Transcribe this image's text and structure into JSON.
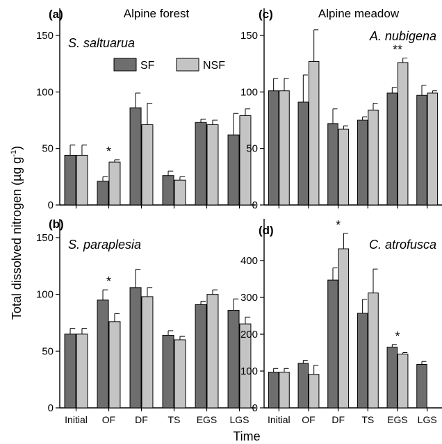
{
  "figure": {
    "ylabel": "Total dissolved nitrogen (µg g",
    "ylabel_sup": "-1",
    "ylabel_close": ")",
    "xlabel": "Time",
    "column_titles": [
      "Alpine forest",
      "Alpine meadow"
    ],
    "colors": {
      "SF": "#6e6e6e",
      "NSF": "#c4c4c4",
      "stroke": "#000000"
    }
  },
  "legend": {
    "items": [
      "SF",
      "NSF"
    ]
  },
  "chart_data": [
    {
      "type": "bar",
      "panel": "a",
      "panel_label": "(a)",
      "species": "S. saltuarua",
      "categories": [
        "Initial",
        "OF",
        "DF",
        "TS",
        "EGS",
        "LGS"
      ],
      "ylim": [
        0,
        160
      ],
      "yticks": [
        0,
        50,
        100,
        150
      ],
      "series": [
        {
          "name": "SF",
          "values": [
            44,
            21,
            86,
            26,
            73,
            62
          ],
          "errors": [
            9,
            4,
            13,
            4,
            3,
            19
          ]
        },
        {
          "name": "NSF",
          "values": [
            44,
            38,
            71,
            22,
            71,
            79
          ],
          "errors": [
            9,
            2,
            19,
            3,
            4,
            6
          ]
        }
      ],
      "annotations": [
        {
          "category": "OF",
          "text": "*"
        }
      ]
    },
    {
      "type": "bar",
      "panel": "b",
      "panel_label": "(b)",
      "species": "S. paraplesia",
      "categories": [
        "Initial",
        "OF",
        "DF",
        "TS",
        "EGS",
        "LGS"
      ],
      "ylim": [
        0,
        150
      ],
      "yticks": [
        0,
        50,
        100,
        150
      ],
      "series": [
        {
          "name": "SF",
          "values": [
            65,
            95,
            106,
            64,
            91,
            86
          ],
          "errors": [
            5,
            9,
            16,
            4,
            3,
            10
          ]
        },
        {
          "name": "NSF",
          "values": [
            65,
            76,
            98,
            60,
            100,
            74
          ],
          "errors": [
            5,
            7,
            8,
            3,
            4,
            6
          ]
        }
      ],
      "annotations": [
        {
          "category": "OF",
          "text": "*"
        }
      ]
    },
    {
      "type": "bar",
      "panel": "c",
      "panel_label": "(c)",
      "species": "A. nubigena",
      "categories": [
        "Initial",
        "OF",
        "DF",
        "TS",
        "EGS",
        "LGS"
      ],
      "ylim": [
        0,
        160
      ],
      "yticks": [
        0,
        50,
        100,
        150
      ],
      "series": [
        {
          "name": "SF",
          "values": [
            101,
            91,
            72,
            75,
            99,
            97
          ],
          "errors": [
            11,
            24,
            13,
            3,
            5,
            9
          ]
        },
        {
          "name": "NSF",
          "values": [
            101,
            127,
            67,
            84,
            126,
            99
          ],
          "errors": [
            11,
            28,
            3,
            6,
            4,
            2
          ]
        }
      ],
      "annotations": [
        {
          "category": "EGS",
          "text": "**"
        }
      ]
    },
    {
      "type": "bar",
      "panel": "d",
      "panel_label": "(d)",
      "species": "C. atrofusca",
      "categories": [
        "Initial",
        "OF",
        "DF",
        "TS",
        "EGS",
        "LGS"
      ],
      "ylim": [
        0,
        460
      ],
      "yticks": [
        0,
        100,
        200,
        300,
        400
      ],
      "series": [
        {
          "name": "SF",
          "values": [
            97,
            121,
            347,
            257,
            165,
            118
          ],
          "errors": [
            10,
            8,
            33,
            38,
            7,
            8
          ]
        },
        {
          "name": "NSF",
          "values": [
            97,
            91,
            432,
            312,
            146,
            null
          ],
          "errors": [
            10,
            25,
            42,
            65,
            4,
            null
          ]
        }
      ],
      "annotations": [
        {
          "category": "DF",
          "text": "*"
        },
        {
          "category": "EGS",
          "text": "*"
        }
      ]
    }
  ]
}
